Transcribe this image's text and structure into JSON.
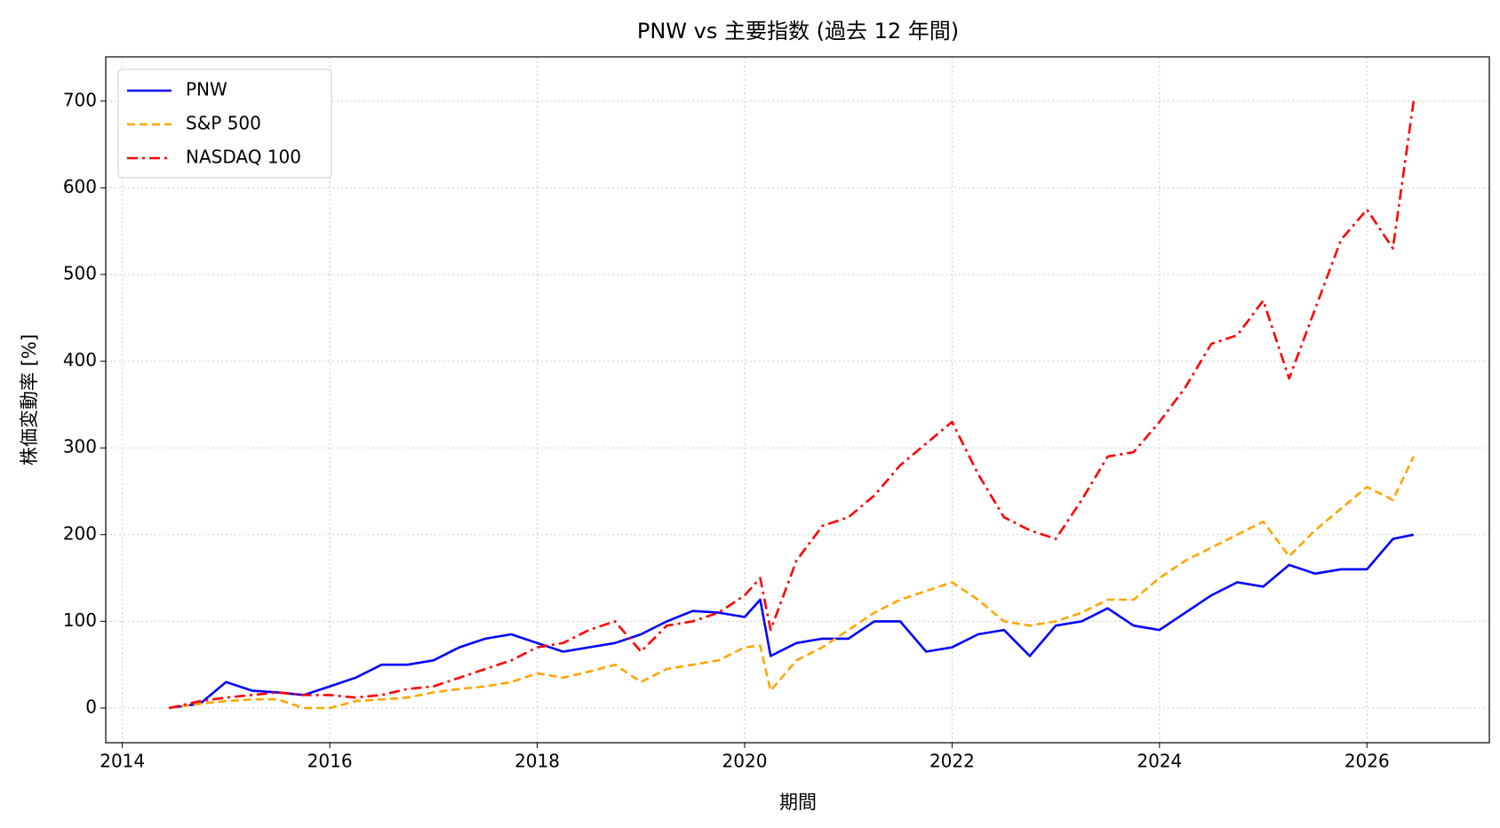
{
  "chart_data": {
    "type": "line",
    "title": "PNW vs 主要指数 (過去 12 年間)",
    "x_label": "期間",
    "y_label": "株価変動率 [%]",
    "x": [
      2014.45,
      2014.75,
      2015,
      2015.25,
      2015.5,
      2015.75,
      2016,
      2016.25,
      2016.5,
      2016.75,
      2017,
      2017.25,
      2017.5,
      2017.75,
      2018,
      2018.25,
      2018.5,
      2018.75,
      2019,
      2019.25,
      2019.5,
      2019.75,
      2020,
      2020.15,
      2020.25,
      2020.5,
      2020.75,
      2021,
      2021.25,
      2021.5,
      2021.75,
      2022,
      2022.25,
      2022.5,
      2022.75,
      2023,
      2023.25,
      2023.5,
      2023.75,
      2024,
      2024.25,
      2024.5,
      2024.75,
      2025,
      2025.25,
      2025.5,
      2025.75,
      2026,
      2026.25,
      2026.45
    ],
    "series": [
      {
        "name": "PNW",
        "color": "#0000ff",
        "dash": "solid",
        "values": [
          0,
          5,
          30,
          20,
          18,
          15,
          25,
          35,
          50,
          50,
          55,
          70,
          80,
          85,
          75,
          65,
          70,
          75,
          85,
          100,
          112,
          110,
          105,
          125,
          60,
          75,
          80,
          80,
          100,
          100,
          65,
          70,
          85,
          90,
          60,
          95,
          100,
          115,
          95,
          90,
          110,
          130,
          145,
          140,
          165,
          155,
          160,
          160,
          195,
          200
        ]
      },
      {
        "name": "S&P 500",
        "color": "#ffa500",
        "dash": "dashed",
        "values": [
          0,
          5,
          8,
          10,
          10,
          0,
          0,
          8,
          10,
          12,
          18,
          22,
          25,
          30,
          40,
          35,
          42,
          50,
          30,
          45,
          50,
          55,
          70,
          72,
          20,
          55,
          70,
          90,
          110,
          125,
          135,
          145,
          125,
          100,
          95,
          100,
          110,
          125,
          125,
          150,
          170,
          185,
          200,
          215,
          175,
          205,
          230,
          255,
          240,
          290
        ]
      },
      {
        "name": "NASDAQ 100",
        "color": "#ff0000",
        "dash": "dashdot",
        "values": [
          0,
          8,
          12,
          15,
          18,
          15,
          15,
          12,
          15,
          22,
          25,
          35,
          45,
          55,
          70,
          75,
          90,
          100,
          65,
          95,
          100,
          110,
          130,
          150,
          90,
          170,
          210,
          220,
          245,
          280,
          305,
          330,
          270,
          220,
          205,
          195,
          240,
          290,
          295,
          330,
          370,
          420,
          430,
          470,
          380,
          460,
          540,
          575,
          530,
          700
        ]
      }
    ],
    "xlim": [
      2013.84,
      2027.18
    ],
    "ylim": [
      -40,
      751
    ],
    "xticks": [
      2014,
      2016,
      2018,
      2020,
      2022,
      2024,
      2026
    ],
    "yticks": [
      0,
      100,
      200,
      300,
      400,
      500,
      600,
      700
    ],
    "grid": true,
    "legend": "upper left"
  }
}
